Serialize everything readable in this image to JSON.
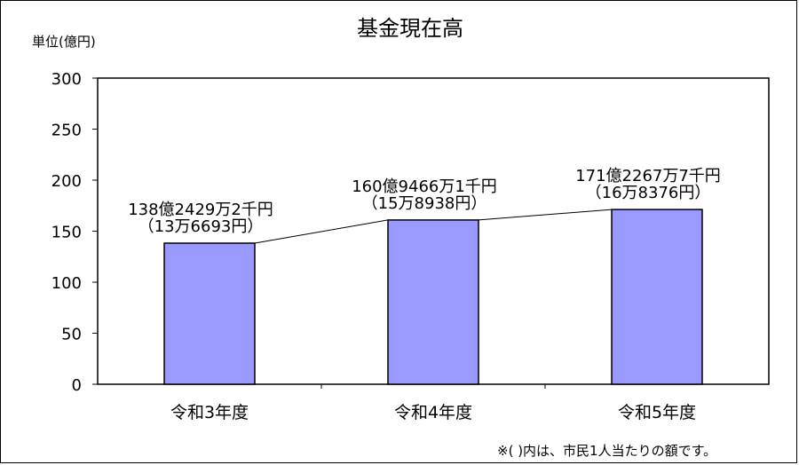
{
  "chart_data": {
    "type": "bar",
    "title": "基金現在高",
    "unit_label": "単位(億円)",
    "categories": [
      "令和3年度",
      "令和4年度",
      "令和5年度"
    ],
    "values": [
      138.2429,
      160.9466,
      171.2267
    ],
    "data_labels": [
      {
        "line1": "138億2429万2千円",
        "line2": "（13万6693円）"
      },
      {
        "line1": "160億9466万1千円",
        "line2": "（15万8938円）"
      },
      {
        "line1": "171億2267万7千円",
        "line2": "（16万8376円）"
      }
    ],
    "ylim": [
      0,
      300
    ],
    "yticks": [
      0,
      50,
      100,
      150,
      200,
      250,
      300
    ],
    "ytick_labels": [
      "0",
      "50",
      "100",
      "150",
      "200",
      "250",
      "300"
    ],
    "grid": false,
    "series_lines": true,
    "bar_color": "#9999ff",
    "footnote": "※( )内は、市民1人当たりの額です。"
  }
}
